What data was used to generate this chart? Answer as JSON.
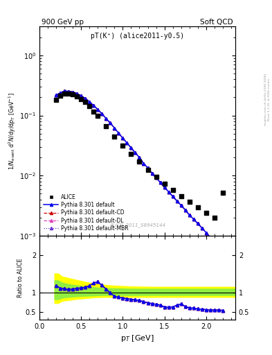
{
  "title_left": "900 GeV pp",
  "title_right": "Soft QCD",
  "plot_label": "pT(K⁺) (alice2011-y0.5)",
  "watermark": "ALICE_2011_S8945144",
  "right_label": "Rivet 3.1.10, ≥ 500k events",
  "right_label2": "mcplots.cern.ch [arXiv:1306.3436]",
  "ylabel_ratio": "Ratio to ALICE",
  "xlabel": "p$_T$ [GeV]",
  "xlim": [
    0.0,
    2.35
  ],
  "ylim_main": [
    0.001,
    3.0
  ],
  "alice_pt": [
    0.2,
    0.25,
    0.3,
    0.35,
    0.4,
    0.45,
    0.5,
    0.55,
    0.6,
    0.65,
    0.7,
    0.8,
    0.9,
    1.0,
    1.1,
    1.2,
    1.3,
    1.4,
    1.5,
    1.6,
    1.7,
    1.8,
    1.9,
    2.0,
    2.1,
    2.2
  ],
  "alice_y": [
    0.183,
    0.213,
    0.23,
    0.232,
    0.223,
    0.208,
    0.187,
    0.167,
    0.142,
    0.117,
    0.098,
    0.066,
    0.045,
    0.032,
    0.023,
    0.017,
    0.0125,
    0.0095,
    0.0074,
    0.0058,
    0.0046,
    0.0037,
    0.003,
    0.0024,
    0.002,
    0.0052
  ],
  "pythia_pt": [
    0.2,
    0.25,
    0.3,
    0.35,
    0.4,
    0.45,
    0.5,
    0.55,
    0.6,
    0.65,
    0.7,
    0.75,
    0.8,
    0.85,
    0.9,
    0.95,
    1.0,
    1.05,
    1.1,
    1.15,
    1.2,
    1.25,
    1.3,
    1.35,
    1.4,
    1.45,
    1.5,
    1.55,
    1.6,
    1.65,
    1.7,
    1.75,
    1.8,
    1.85,
    1.9,
    1.95,
    2.0,
    2.05,
    2.1,
    2.15,
    2.2,
    2.25
  ],
  "pythia_default_y": [
    0.218,
    0.238,
    0.255,
    0.253,
    0.246,
    0.232,
    0.212,
    0.192,
    0.169,
    0.147,
    0.126,
    0.107,
    0.089,
    0.075,
    0.062,
    0.051,
    0.042,
    0.035,
    0.029,
    0.024,
    0.02,
    0.016,
    0.0135,
    0.011,
    0.0092,
    0.0077,
    0.0064,
    0.0054,
    0.0045,
    0.0038,
    0.0032,
    0.0027,
    0.0022,
    0.0019,
    0.0016,
    0.00135,
    0.00113,
    0.00095,
    0.0008,
    0.00068,
    0.00057,
    0.00048
  ],
  "pythia_cd_y": [
    0.218,
    0.238,
    0.255,
    0.253,
    0.246,
    0.232,
    0.212,
    0.192,
    0.169,
    0.147,
    0.126,
    0.107,
    0.089,
    0.075,
    0.062,
    0.051,
    0.042,
    0.035,
    0.029,
    0.024,
    0.02,
    0.016,
    0.0135,
    0.011,
    0.0092,
    0.0077,
    0.0064,
    0.0054,
    0.0045,
    0.0038,
    0.0032,
    0.0027,
    0.0022,
    0.0019,
    0.0016,
    0.00135,
    0.00113,
    0.00095,
    0.0008,
    0.00068,
    0.00057,
    0.00048
  ],
  "pythia_dl_y": [
    0.218,
    0.238,
    0.255,
    0.253,
    0.246,
    0.232,
    0.212,
    0.192,
    0.169,
    0.147,
    0.126,
    0.107,
    0.089,
    0.075,
    0.062,
    0.051,
    0.042,
    0.035,
    0.029,
    0.024,
    0.02,
    0.016,
    0.0135,
    0.011,
    0.0092,
    0.0077,
    0.0064,
    0.0054,
    0.0045,
    0.0038,
    0.0032,
    0.0027,
    0.0022,
    0.0019,
    0.0016,
    0.00135,
    0.00113,
    0.00095,
    0.0008,
    0.00068,
    0.00057,
    0.00048
  ],
  "pythia_mbr_y": [
    0.218,
    0.238,
    0.255,
    0.253,
    0.246,
    0.232,
    0.212,
    0.192,
    0.169,
    0.147,
    0.126,
    0.107,
    0.089,
    0.075,
    0.062,
    0.051,
    0.042,
    0.035,
    0.029,
    0.024,
    0.02,
    0.016,
    0.0135,
    0.011,
    0.0092,
    0.0077,
    0.0064,
    0.0054,
    0.0045,
    0.0038,
    0.0032,
    0.0027,
    0.0022,
    0.0019,
    0.0016,
    0.00135,
    0.00113,
    0.00095,
    0.0008,
    0.00068,
    0.00057,
    0.00048
  ],
  "ratio_pt": [
    0.2,
    0.25,
    0.3,
    0.35,
    0.4,
    0.45,
    0.5,
    0.55,
    0.6,
    0.65,
    0.7,
    0.75,
    0.8,
    0.85,
    0.9,
    0.95,
    1.0,
    1.05,
    1.1,
    1.15,
    1.2,
    1.25,
    1.3,
    1.35,
    1.4,
    1.45,
    1.5,
    1.55,
    1.6,
    1.65,
    1.7,
    1.75,
    1.8,
    1.85,
    1.9,
    1.95,
    2.0,
    2.05,
    2.1,
    2.15,
    2.2
  ],
  "ratio_default": [
    1.19,
    1.12,
    1.11,
    1.09,
    1.1,
    1.12,
    1.13,
    1.15,
    1.19,
    1.26,
    1.29,
    1.2,
    1.1,
    1.0,
    0.91,
    0.89,
    0.87,
    0.85,
    0.83,
    0.82,
    0.8,
    0.77,
    0.74,
    0.72,
    0.7,
    0.68,
    0.63,
    0.63,
    0.63,
    0.68,
    0.71,
    0.64,
    0.61,
    0.6,
    0.58,
    0.57,
    0.56,
    0.55,
    0.55,
    0.55,
    0.54
  ],
  "ratio_cd": [
    1.19,
    1.12,
    1.11,
    1.09,
    1.1,
    1.12,
    1.13,
    1.15,
    1.19,
    1.26,
    1.29,
    1.2,
    1.1,
    1.0,
    0.91,
    0.89,
    0.87,
    0.85,
    0.83,
    0.82,
    0.8,
    0.77,
    0.74,
    0.72,
    0.7,
    0.68,
    0.63,
    0.63,
    0.63,
    0.68,
    0.71,
    0.64,
    0.61,
    0.6,
    0.58,
    0.57,
    0.56,
    0.55,
    0.55,
    0.55,
    0.54
  ],
  "ratio_dl": [
    1.19,
    1.12,
    1.11,
    1.09,
    1.1,
    1.12,
    1.13,
    1.15,
    1.19,
    1.26,
    1.29,
    1.2,
    1.1,
    1.0,
    0.91,
    0.89,
    0.87,
    0.85,
    0.83,
    0.82,
    0.8,
    0.77,
    0.74,
    0.72,
    0.7,
    0.68,
    0.63,
    0.63,
    0.63,
    0.68,
    0.71,
    0.64,
    0.61,
    0.6,
    0.58,
    0.57,
    0.56,
    0.55,
    0.55,
    0.55,
    0.54
  ],
  "ratio_mbr": [
    1.19,
    1.12,
    1.11,
    1.09,
    1.1,
    1.12,
    1.13,
    1.15,
    1.19,
    1.26,
    1.29,
    1.2,
    1.1,
    1.0,
    0.91,
    0.89,
    0.87,
    0.85,
    0.83,
    0.82,
    0.8,
    0.77,
    0.74,
    0.72,
    0.7,
    0.68,
    0.63,
    0.63,
    0.63,
    0.68,
    0.71,
    0.64,
    0.61,
    0.6,
    0.58,
    0.57,
    0.56,
    0.55,
    0.55,
    0.55,
    0.54
  ],
  "band_x": [
    0.175,
    0.225,
    0.275,
    0.35,
    0.45,
    0.55,
    0.65,
    0.75,
    0.9,
    1.1,
    1.35,
    1.65,
    2.05,
    2.35
  ],
  "band_yellow_lo": [
    0.72,
    0.72,
    0.78,
    0.8,
    0.83,
    0.85,
    0.87,
    0.88,
    0.88,
    0.88,
    0.88,
    0.88,
    0.88,
    0.88
  ],
  "band_yellow_hi": [
    1.52,
    1.52,
    1.44,
    1.4,
    1.35,
    1.3,
    1.26,
    1.23,
    1.2,
    1.18,
    1.17,
    1.17,
    1.17,
    1.17
  ],
  "band_green_lo": [
    0.82,
    0.82,
    0.86,
    0.88,
    0.9,
    0.91,
    0.92,
    0.93,
    0.93,
    0.93,
    0.93,
    0.93,
    0.93,
    0.93
  ],
  "band_green_hi": [
    1.34,
    1.34,
    1.28,
    1.24,
    1.21,
    1.18,
    1.16,
    1.14,
    1.13,
    1.12,
    1.12,
    1.12,
    1.12,
    1.12
  ],
  "color_default": "#0000ee",
  "color_cd": "#cc0000",
  "color_dl": "#dd44bb",
  "color_mbr": "#6633cc",
  "color_alice": "#000000",
  "marker_size": 3,
  "legend_fontsize": 5.5,
  "tick_labelsize": 7,
  "axis_labelsize": 7
}
